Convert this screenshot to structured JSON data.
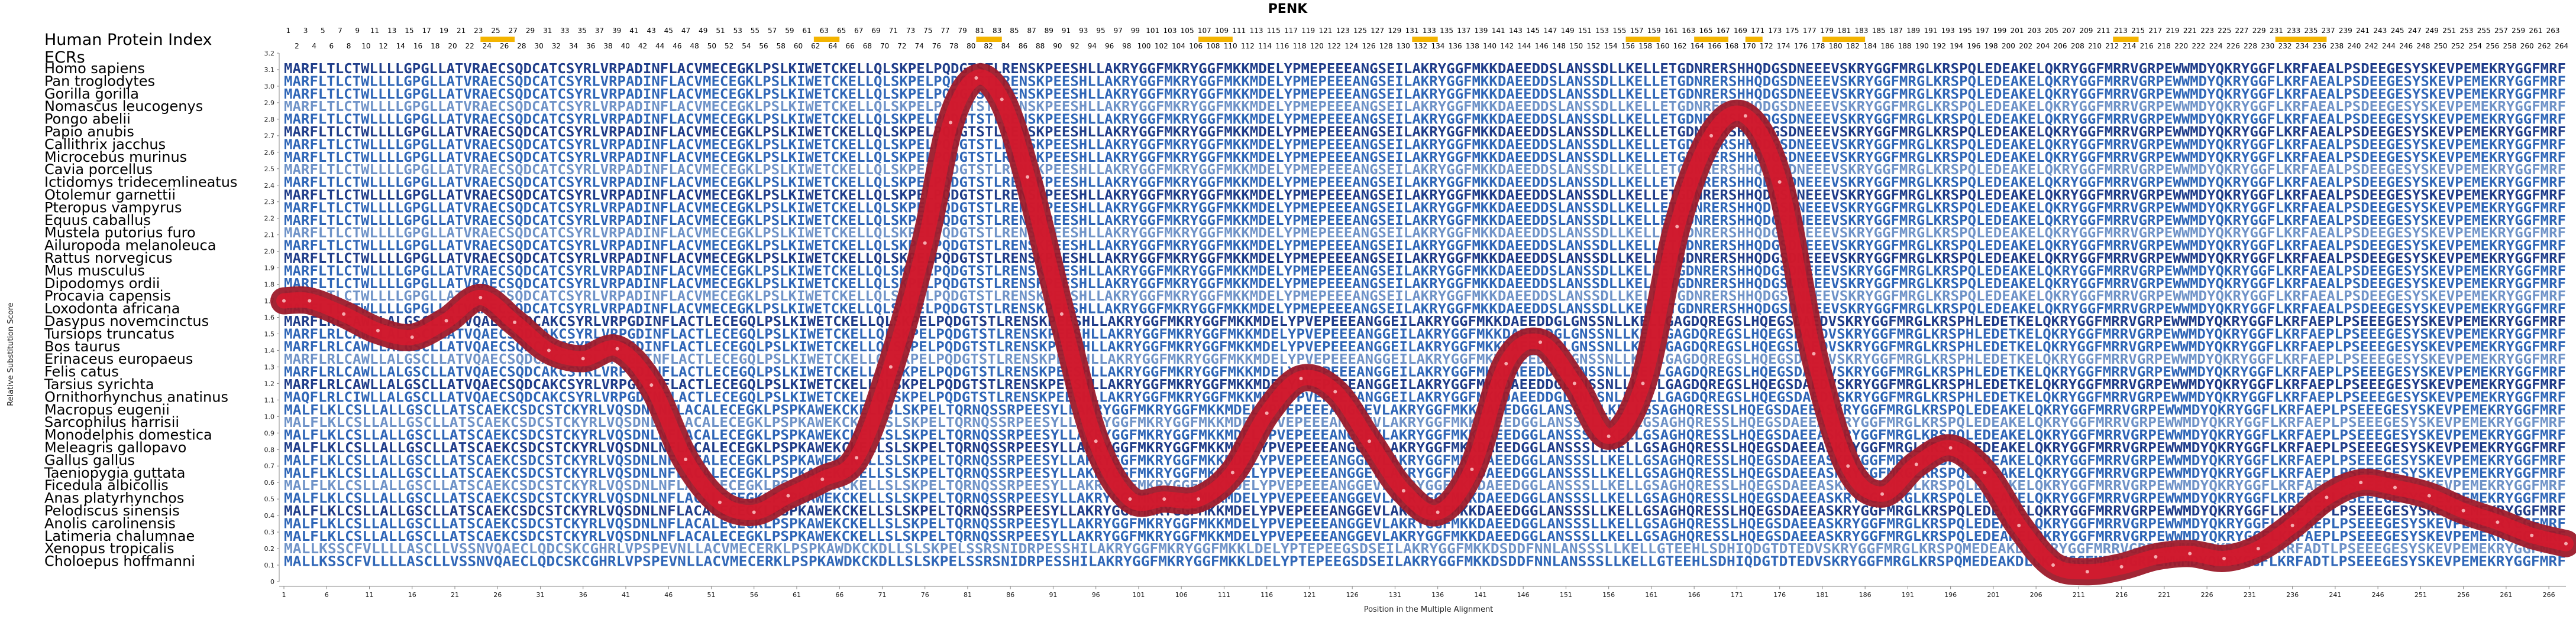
{
  "title": "PENK",
  "header_label": "Human Protein Index",
  "ecr_label": "ECRs",
  "chart_data": {
    "type": "line",
    "title": "PENK",
    "xlabel": "Position in the Multiple Alignment",
    "ylabel": "Relative Substitution Score",
    "xlim": [
      1,
      268
    ],
    "ylim": [
      0,
      3.2
    ],
    "y_ticks": [
      "0",
      "0.1",
      "0.2",
      "0.3",
      "0.4",
      "0.5",
      "0.6",
      "0.7",
      "0.8",
      "0.9",
      "1.0",
      "1.1",
      "1.2",
      "1.3",
      "1.4",
      "1.5",
      "1.6",
      "1.7",
      "1.8",
      "1.9",
      "2.0",
      "2.1",
      "2.2",
      "2.3",
      "2.4",
      "2.5",
      "2.6",
      "2.7",
      "2.8",
      "2.9",
      "3.0",
      "3.1",
      "3.2"
    ],
    "x_ticks": [
      1,
      6,
      11,
      16,
      21,
      26,
      31,
      36,
      41,
      46,
      51,
      56,
      61,
      66,
      71,
      76,
      81,
      86,
      91,
      96,
      101,
      106,
      111,
      116,
      121,
      126,
      131,
      136,
      141,
      146,
      151,
      156,
      161,
      166,
      171,
      176,
      181,
      186,
      191,
      196,
      201,
      206,
      211,
      216,
      221,
      226,
      231,
      236,
      241,
      246,
      251,
      256,
      261,
      266
    ],
    "human_index_count": 264,
    "series": [
      {
        "x": [
          1,
          4,
          8,
          12,
          16,
          20,
          24,
          28,
          32,
          36,
          40,
          44,
          48,
          52,
          56,
          60,
          64,
          68,
          72,
          76,
          79,
          82,
          85,
          88,
          92,
          96,
          100,
          104,
          108,
          112,
          116,
          120,
          124,
          128,
          132,
          136,
          140,
          144,
          148,
          152,
          156,
          160,
          164,
          168,
          172,
          176,
          180,
          184,
          188,
          192,
          196,
          200,
          204,
          208,
          212,
          216,
          220,
          224,
          228,
          232,
          236,
          240,
          244,
          248,
          252,
          256,
          260,
          264,
          268
        ],
        "y": [
          1.7,
          1.7,
          1.62,
          1.52,
          1.48,
          1.58,
          1.72,
          1.57,
          1.4,
          1.35,
          1.41,
          1.19,
          0.74,
          0.48,
          0.42,
          0.52,
          0.62,
          0.75,
          1.3,
          2.05,
          2.78,
          3.05,
          2.92,
          2.45,
          1.62,
          0.85,
          0.5,
          0.5,
          0.5,
          0.66,
          1.02,
          1.23,
          1.15,
          0.85,
          0.55,
          0.42,
          0.68,
          1.32,
          1.45,
          1.2,
          0.88,
          1.2,
          2.15,
          2.7,
          2.82,
          2.42,
          1.38,
          0.7,
          0.53,
          0.71,
          0.81,
          0.66,
          0.34,
          0.1,
          0.06,
          0.09,
          0.15,
          0.17,
          0.14,
          0.2,
          0.34,
          0.51,
          0.6,
          0.57,
          0.52,
          0.43,
          0.36,
          0.28,
          0.23
        ]
      }
    ],
    "ecr_segments": [
      [
        24,
        28
      ],
      [
        63,
        66
      ],
      [
        82,
        85
      ],
      [
        108,
        112
      ],
      [
        133,
        136
      ],
      [
        158,
        162
      ],
      [
        166,
        170
      ],
      [
        172,
        174
      ],
      [
        181,
        186
      ],
      [
        215,
        218
      ],
      [
        234,
        240
      ]
    ]
  },
  "species": [
    "Homo sapiens",
    "Pan troglodytes",
    "Gorilla gorilla",
    "Nomascus leucogenys",
    "Pongo abelii",
    "Papio anubis",
    "Callithrix jacchus",
    "Microcebus murinus",
    "Cavia porcellus",
    "Ictidomys tridecemlineatus",
    "Otolemur garnettii",
    "Pteropus vampyrus",
    "Equus caballus",
    "Mustela putorius furo",
    "Ailuropoda melanoleuca",
    "Rattus norvegicus",
    "Mus musculus",
    "Dipodomys ordii",
    "Procavia capensis",
    "Loxodonta africana",
    "Dasypus novemcinctus",
    "Tursiops truncatus",
    "Bos taurus",
    "Erinaceus europaeus",
    "Felis catus",
    "Tarsius syrichta",
    "Ornithorhynchus anatinus",
    "Macropus eugenii",
    "Sarcophilus harrisii",
    "Monodelphis domestica",
    "Meleagris gallopavo",
    "Gallus gallus",
    "Taeniopygia guttata",
    "Ficedula albicollis",
    "Anas platyrhynchos",
    "Pelodiscus sinensis",
    "Anolis carolinensis",
    "Latimeria chalumnae",
    "Xenopus tropicalis",
    "Choloepus hoffmanni"
  ],
  "sequences": [
    "MARFLTLCTWLLLLGPGLLATVRAECSQDCATCSYRLVRPADINFLACVMECEGKLPSLKIWETCKELLQLSKPELPQDGTSTLRENSKPEESHLLAKRYGGFMKRYGGFMKKMDELYPMEPEEEANGSEILAKRYGGFMKKDAEEDDSLANSSDLLKELLETGDNRERSHHQDGSDNEEEVSKRYGGFMRGLKRSPQLEDEAKELQKRYGGFMRRVGRPEWWMDYQKRYGGFLKRFAEALPSDEEGESYSKEVPEMEKRYGGFMRF",
    "MARFLTLCTWLLLLGPGLLATVRAECSQDCATCSYRLVRPADINFLACVMECEGKLPSLKIWETCKELLQLSKPELPQDGTSTLRENSKPEESHLLAKRYGGFMKRYGGFMKKMDELYPMEPEEEANGSEILAKRYGGFMKKDAEEDDSLANSSDLLKELLETGDNRERSHHQDGSDNEEEVSKRYGGFMRGLKRSPQLEDEAKELQKRYGGFMRRVGRPEWWMDYQKRYGGFLKRFAEALPSDEEGESYSKEVPEMEKRYGGFMRF",
    "MARFLTLCTWLLLLGPGLLATVRAECSQDCATCSYRLVRPADINFLACVMECEGKLPSLKIWETCKELLQLSKPELPQDGTSTLRENSKPEESHLLAKRYGGFMKRYGGFMKKMDELYPMEPEEEANGSEILAKRYGGFMKKDAEEDDSLANSSDLLKELLETGDNRERSHHQDGSDNEEEVSKRYGGFMRGLKRSPQLEDEAKELQKRYGGFMRRVGRPEWWMDYQKRYGGFLKRFAEALPSDEEGESYSKEVPEMEKRYGGFMRF",
    "MARFLTLCTWLLLLGPGLLATVRAECSQDCATCSYRLVRPADINFLACVMECEGKLPSLKIWETCKELLQLSKPELPQDGTSTLRENSKPEESHLLAKRYGGFMKRYGGFMKKMDELYPMEPEEEANGSEILAKRYGGFMKKDAEEDDSLANSSDLLKELLETGDNRERSHHQDGSDNEEEVSKRYGGFMRGLKRSPQLEDEAKELQKRYGGFMRRVGRPEWWMDYQKRYGGFLKRFAEALPSDEEGESYSKEVPEMEKRYGGFMRF",
    "MARFLTLCTWLLLLGPGLLATVRAECSQDCATCSYRLVRPADINFLACVMECEGKLPSLKIWETCKELLQLSKPELPQDGTSTLRENSKPEESHLLAKRYGGFMKRYGGFMKKMDELYPMEPEEEANGSEILAKRYGGFMKKDAEEDDSLANSSDLLKELLETGDNRERSHHQDGSDNEEEVSKRYGGFMRGLKRSPQLEDEAKELQKRYGGFMRRVGRPEWWMDYQKRYGGFLKRFAEALPSDEEGESYSKEVPEMEKRYGGFMRF",
    "MARFLTLCTWLLLLGPGLLATVRAECSQDCATCSYRLVRPADINFLACVMECEGKLPSLKIWETCKELLQLSKPELPQDGTSTLRENSKPEESHLLAKRYGGFMKRYGGFMKKMDELYPMEPEEEANGSEILAKRYGGFMKKDAEEDDSLANSSDLLKELLETGDNRERSHHQDGSDNEEEVSKRYGGFMRGLKRSPQLEDEAKELQKRYGGFMRRVGRPEWWMDYQKRYGGFLKRFAEALPSDEEGESYSKEVPEMEKRYGGFMRF",
    "MARFLTLCTWLLLLGPGLLATVRAECSQDCATCSYRLVRPADINFLACVMECEGKLPSLKIWETCKELLQLSKPELPQDGTSTLRENSKPEESHLLAKRYGGFMKRYGGFMKKMDELYPMEPEEEANGSEILAKRYGGFMKKDAEEDDSLANSSDLLKELLETGDNRERSHHQDGSDNEEEVSKRYGGFMRGLKRSPQLEDEAKELQKRYGGFMRRVGRPEWWMDYQKRYGGFLKRFAEALPSDEEGESYSKEVPEMEKRYGGFMRF",
    "MARFLTLCTWLLLLGPGLLATVRAECSQDCATCSYRLVRPADINFLACVMECEGKLPSLKIWETCKELLQLSKPELPQDGTSTLRENSKPEESHLLAKRYGGFMKRYGGFMKKMDELYPMEPEEEANGSEILAKRYGGFMKKDAEEDDSLANSSDLLKELLETGDNRERSHHQDGSDNEEEVSKRYGGFMRGLKRSPQLEDEAKELQKRYGGFMRRVGRPEWWMDYQKRYGGFLKRFAEALPSDEEGESYSKEVPEMEKRYGGFMRF",
    "MARFLTLCTWLLLLGPGLLATVRAECSQDCATCSYRLVRPADINFLACVMECEGKLPSLKIWETCKELLQLSKPELPQDGTSTLRENSKPEESHLLAKRYGGFMKRYGGFMKKMDELYPMEPEEEANGSEILAKRYGGFMKKDAEEDDSLANSSDLLKELLETGDNRERSHHQDGSDNEEEVSKRYGGFMRGLKRSPQLEDEAKELQKRYGGFMRRVGRPEWWMDYQKRYGGFLKRFAEALPSDEEGESYSKEVPEMEKRYGGFMRF",
    "MARFLTLCTWLLLLGPGLLATVRAECSQDCATCSYRLVRPADINFLACVMECEGKLPSLKIWETCKELLQLSKPELPQDGTSTLRENSKPEESHLLAKRYGGFMKRYGGFMKKMDELYPMEPEEEANGSEILAKRYGGFMKKDAEEDDSLANSSDLLKELLETGDNRERSHHQDGSDNEEEVSKRYGGFMRGLKRSPQLEDEAKELQKRYGGFMRRVGRPEWWMDYQKRYGGFLKRFAEALPSDEEGESYSKEVPEMEKRYGGFMRF",
    "MARFLTLCTWLLLLGPGLLATVRAECSQDCATCSYRLVRPADINFLACVMECEGKLPSLKIWETCKELLQLSKPELPQDGTSTLRENSKPEESHLLAKRYGGFMKRYGGFMKKMDELYPMEPEEEANGSEILAKRYGGFMKKDAEEDDSLANSSDLLKELLETGDNRERSHHQDGSDNEEEVSKRYGGFMRGLKRSPQLEDEAKELQKRYGGFMRRVGRPEWWMDYQKRYGGFLKRFAEALPSDEEGESYSKEVPEMEKRYGGFMRF",
    "MARFLTLCTWLLLLGPGLLATVRAECSQDCATCSYRLVRPADINFLACVMECEGKLPSLKIWETCKELLQLSKPELPQDGTSTLRENSKPEESHLLAKRYGGFMKRYGGFMKKMDELYPMEPEEEANGSEILAKRYGGFMKKDAEEDDSLANSSDLLKELLETGDNRERSHHQDGSDNEEEVSKRYGGFMRGLKRSPQLEDEAKELQKRYGGFMRRVGRPEWWMDYQKRYGGFLKRFAEALPSDEEGESYSKEVPEMEKRYGGFMRF",
    "MARFLTLCTWLLLLGPGLLATVRAECSQDCATCSYRLVRPADINFLACVMECEGKLPSLKIWETCKELLQLSKPELPQDGTSTLRENSKPEESHLLAKRYGGFMKRYGGFMKKMDELYPMEPEEEANGSEILAKRYGGFMKKDAEEDDSLANSSDLLKELLETGDNRERSHHQDGSDNEEEVSKRYGGFMRGLKRSPQLEDEAKELQKRYGGFMRRVGRPEWWMDYQKRYGGFLKRFAEALPSDEEGESYSKEVPEMEKRYGGFMRF",
    "MARFLTLCTWLLLLGPGLLATVRAECSQDCATCSYRLVRPADINFLACVMECEGKLPSLKIWETCKELLQLSKPELPQDGTSTLRENSKPEESHLLAKRYGGFMKRYGGFMKKMDELYPMEPEEEANGSEILAKRYGGFMKKDAEEDDSLANSSDLLKELLETGDNRERSHHQDGSDNEEEVSKRYGGFMRGLKRSPQLEDEAKELQKRYGGFMRRVGRPEWWMDYQKRYGGFLKRFAEALPSDEEGESYSKEVPEMEKRYGGFMRF",
    "MARFLTLCTWLLLLGPGLLATVRAECSQDCATCSYRLVRPADINFLACVMECEGKLPSLKIWETCKELLQLSKPELPQDGTSTLRENSKPEESHLLAKRYGGFMKRYGGFMKKMDELYPMEPEEEANGSEILAKRYGGFMKKDAEEDDSLANSSDLLKELLETGDNRERSHHQDGSDNEEEVSKRYGGFMRGLKRSPQLEDEAKELQKRYGGFMRRVGRPEWWMDYQKRYGGFLKRFAEALPSDEEGESYSKEVPEMEKRYGGFMRF",
    "MARFLTLCTWLLLLGPGLLATVRAECSQDCATCSYRLVRPADINFLACVMECEGKLPSLKIWETCKELLQLSKPELPQDGTSTLRENSKPEESHLLAKRYGGFMKRYGGFMKKMDELYPMEPEEEANGSEILAKRYGGFMKKDAEEDDSLANSSDLLKELLETGDNRERSHHQDGSDNEEEVSKRYGGFMRGLKRSPQLEDEAKELQKRYGGFMRRVGRPEWWMDYQKRYGGFLKRFAEALPSDEEGESYSKEVPEMEKRYGGFMRF",
    "MARFLTLCTWLLLLGPGLLATVRAECSQDCATCSYRLVRPADINFLACVMECEGKLPSLKIWETCKELLQLSKPELPQDGTSTLRENSKPEESHLLAKRYGGFMKRYGGFMKKMDELYPMEPEEEANGSEILAKRYGGFMKKDAEEDDSLANSSDLLKELLETGDNRERSHHQDGSDNEEEVSKRYGGFMRGLKRSPQLEDEAKELQKRYGGFMRRVGRPEWWMDYQKRYGGFLKRFAEALPSDEEGESYSKEVPEMEKRYGGFMRF",
    "MARFLTLCTWLLLLGPGLLATVRAECSQDCATCSYRLVRPADINFLACVMECEGKLPSLKIWETCKELLQLSKPELPQDGTSTLRENSKPEESHLLAKRYGGFMKRYGGFMKKMDELYPMEPEEEANGSEILAKRYGGFMKKDAEEDDSLANSSDLLKELLETGDNRERSHHQDGSDNEEEVSKRYGGFMRGLKRSPQLEDEAKELQKRYGGFMRRVGRPEWWMDYQKRYGGFLKRFAEALPSDEEGESYSKEVPEMEKRYGGFMRF",
    "MARFLTLCTWLLLLGPGLLATVRAECSQDCATCSYRLVRPADINFLACVMECEGKLPSLKIWETCKELLQLSKPELPQDGTSTLRENSKPEESHLLAKRYGGFMKRYGGFMKKMDELYPMEPEEEANGSEILAKRYGGFMKKDAEEDDSLANSSDLLKELLETGDNRERSHHQDGSDNEEEVSKRYGGFMRGLKRSPQLEDEAKELQKRYGGFMRRVGRPEWWMDYQKRYGGFLKRFAEALPSDEEGESYSKEVPEMEKRYGGFMRF",
    "MARFLTLCTWLLLLGPGLLATVRAECSQDCATCSYRLVRPADINFLACVMECEGKLPSLKIWETCKELLQLSKPELPQDGTSTLRENSKPEESHLLAKRYGGFMKRYGGFMKKMDELYPMEPEEEANGSEILAKRYGGFMKKDAEEDDSLANSSDLLKELLETGDNRERSHHQDGSDNEEEVSKRYGGFMRGLKRSPQLEDEAKELQKRYGGFMRRVGRPEWWMDYQKRYGGFLKRFAEALPSDEEGESYSKEVPEMEKRYGGFMRF",
    "MARFLRLCAWLLALGSCLLATVQAECSQDCAKCSYRLVRPGDINFLACTLECEGQLPSLKIWETCKELLQLSKPELPQDGTSTLRENSKPEESHLLAKRYGGFMKRYGGFMKKMDELYPVEPEEEANGGEILAKRYGGFMKKDAEEDDGLGNSSNLLKELLGAGDQREGSLHQEGSDAEDVSKRYGGFMRGLKRSPHLEDETKELQKRYGGFMRRVGRPEWWMDYQKRYGGFLKRFAEPLPSEEEGESYSKEVPEMEKRYGGFMRF",
    "MARFLRLCAWLLALGSCLLATVQAECSQDCAKCSYRLVRPGDINFLACTLECEGQLPSLKIWETCKELLQLSKPELPQDGTSTLRENSKPEESHLLAKRYGGFMKRYGGFMKKMDELYPVEPEEEANGGEILAKRYGGFMKKDAEEDDGLGNSSNLLKELLGAGDQREGSLHQEGSDAEDVSKRYGGFMRGLKRSPHLEDETKELQKRYGGFMRRVGRPEWWMDYQKRYGGFLKRFAEPLPSEEEGESYSKEVPEMEKRYGGFMRF",
    "MARFLRLCAWLLALGSCLLATVQAECSQDCAKCSYRLVRPGDINFLACTLECEGQLPSLKIWETCKELLQLSKPELPQDGTSTLRENSKPEESHLLAKRYGGFMKRYGGFMKKMDELYPVEPEEEANGGEILAKRYGGFMKKDAEEDDGLGNSSNLLKELLGAGDQREGSLHQEGSDAEDVSKRYGGFMRGLKRSPHLEDETKELQKRYGGFMRRVGRPEWWMDYQKRYGGFLKRFAEPLPSEEEGESYSKEVPEMEKRYGGFMRF",
    "MARFLRLCAWLLALGSCLLATVQAECSQDCAKCSYRLVRPGDINFLACTLECEGQLPSLKIWETCKELLQLSKPELPQDGTSTLRENSKPEESHLLAKRYGGFMKRYGGFMKKMDELYPVEPEEEANGGEILAKRYGGFMKKDAEEDDGLGNSSNLLKELLGAGDQREGSLHQEGSDAEDVSKRYGGFMRGLKRSPHLEDETKELQKRYGGFMRRVGRPEWWMDYQKRYGGFLKRFAEPLPSEEEGESYSKEVPEMEKRYGGFMRF",
    "MARFLRLCAWLLALGSCLLATVQAECSQDCAKCSYRLVRPGDINFLACTLECEGQLPSLKIWETCKELLQLSKPELPQDGTSTLRENSKPEESHLLAKRYGGFMKRYGGFMKKMDELYPVEPEEEANGGEILAKRYGGFMKKDAEEDDGLGNSSNLLKELLGAGDQREGSLHQEGSDAEDVSKRYGGFMRGLKRSPHLEDETKELQKRYGGFMRRVGRPEWWMDYQKRYGGFLKRFAEPLPSEEEGESYSKEVPEMEKRYGGFMRF",
    "MARFLRLCAWLLALGSCLLATVQAECSQDCAKCSYRLVRPGDINFLACTLECEGQLPSLKIWETCKELLQLSKPELPQDGTSTLRENSKPEESHLLAKRYGGFMKRYGGFMKKMDELYPVEPEEEANGGEILAKRYGGFMKKDAEEDDGLGNSSNLLKELLGAGDQREGSLHQEGSDAEDVSKRYGGFMRGLKRSPHLEDETKELQKRYGGFMRRVGRPEWWMDYQKRYGGFLKRFAEPLPSEEEGESYSKEVPEMEKRYGGFMRF",
    "MAQFLRLCIWLLALGSCLLATVQAECSQDCAKCSYRLVRPGDINFLACTLECEGQLPSLKIWETCKELLQLSKPELPQDGTSTLRENSKPEESHLLAKRYGGFMKRYGGFMKKMDELYPVEPEEEANGGEILAKRYGGFMKKDAEEDDGLGNSSNLLKELLGAGDQREGSLHQEGSDAEDVSKRYGGFMRGLKRSPHLEDETKELQKRYGGFMRRVGRPEWWMDYQKRYGGFLKRFAEPLPSEEEGESYSKEVPEMEKRYGGFMRF",
    "MALFLKLCSLLALLGSCLLATSCAEKCSDCSTCKYRLVQSDNLNFLACALECEGKLPSPKAWEKCKELLSLSKPELTQRNQSSRPEESYLLAKRYGGFMKRYGGFMKKMDELYPVEPEEEANGGEVLAKRYGGFMKKDAEEDGGLANSSSLLKELLGSAGHQRESSLHQEGSDAEEASKRYGGFMRGLKRSPQLEDEAKELQKRYGGFMRRVGRPEWWMDYQKRYGGFLKRFAEPLPSEEEGESYSKEVPEMEKRYGGFMRF",
    "MALFLKLCSLLALLGSCLLATSCAEKCSDCSTCKYRLVQSDNLNFLACALECEGKLPSPKAWEKCKELLSLSKPELTQRNQSSRPEESYLLAKRYGGFMKRYGGFMKKMDELYPVEPEEEANGGEVLAKRYGGFMKKDAEEDGGLANSSSLLKELLGSAGHQRESSLHQEGSDAEEASKRYGGFMRGLKRSPQLEDEAKELQKRYGGFMRRVGRPEWWMDYQKRYGGFLKRFAEPLPSEEEGESYSKEVPEMEKRYGGFMRF",
    "MALFLKLCSLLALLGSCLLATSCAEKCSDCSTCKYRLVQSDNLNFLACALECEGKLPSPKAWEKCKELLSLSKPELTQRNQSSRPEESYLLAKRYGGFMKRYGGFMKKMDELYPVEPEEEANGGEVLAKRYGGFMKKDAEEDGGLANSSSLLKELLGSAGHQRESSLHQEGSDAEEASKRYGGFMRGLKRSPQLEDEAKELQKRYGGFMRRVGRPEWWMDYQKRYGGFLKRFAEPLPSEEEGESYSKEVPEMEKRYGGFMRF",
    "MALFLKLCSLLALLGSCLLATSCAEKCSDCSTCKYRLVQSDNLNFLACALECEGKLPSPKAWEKCKELLSLSKPELTQRNQSSRPEESYLLAKRYGGFMKRYGGFMKKMDELYPVEPEEEANGGEVLAKRYGGFMKKDAEEDGGLANSSSLLKELLGSAGHQRESSLHQEGSDAEEASKRYGGFMRGLKRSPQLEDEAKELQKRYGGFMRRVGRPEWWMDYQKRYGGFLKRFAEPLPSEEEGESYSKEVPEMEKRYGGFMRF",
    "MALFLKLCSLLALLGSCLLATSCAEKCSDCSTCKYRLVQSDNLNFLACALECEGKLPSPKAWEKCKELLSLSKPELTQRNQSSRPEESYLLAKRYGGFMKRYGGFMKKMDELYPVEPEEEANGGEVLAKRYGGFMKKDAEEDGGLANSSSLLKELLGSAGHQRESSLHQEGSDAEEASKRYGGFMRGLKRSPQLEDEAKELQKRYGGFMRRVGRPEWWMDYQKRYGGFLKRFAEPLPSEEEGESYSKEVPEMEKRYGGFMRF",
    "MALFLKLCSLLALLGSCLLATSCAEKCSDCSTCKYRLVQSDNLNFLACALECEGKLPSPKAWEKCKELLSLSKPELTQRNQSSRPEESYLLAKRYGGFMKRYGGFMKKMDELYPVEPEEEANGGEVLAKRYGGFMKKDAEEDGGLANSSSLLKELLGSAGHQRESSLHQEGSDAEEASKRYGGFMRGLKRSPQLEDEAKELQKRYGGFMRRVGRPEWWMDYQKRYGGFLKRFAEPLPSEEEGESYSKEVPEMEKRYGGFMRF",
    "MALFLKLCSLLALLGSCLLATSCAEKCSDCSTCKYRLVQSDNLNFLACALECEGKLPSPKAWEKCKELLSLSKPELTQRNQSSRPEESYLLAKRYGGFMKRYGGFMKKMDELYPVEPEEEANGGEVLAKRYGGFMKKDAEEDGGLANSSSLLKELLGSAGHQRESSLHQEGSDAEEASKRYGGFMRGLKRSPQLEDEAKELQKRYGGFMRRVGRPEWWMDYQKRYGGFLKRFAEPLPSEEEGESYSKEVPEMEKRYGGFMRF",
    "MALFLKLCSLLALLGSCLLATSCAEKCSDCSTCKYRLVQSDNLNFLACALECEGKLPSPKAWEKCKELLSLSKPELTQRNQSSRPEESYLLAKRYGGFMKRYGGFMKKMDELYPVEPEEEANGGEVLAKRYGGFMKKDAEEDGGLANSSSLLKELLGSAGHQRESSLHQEGSDAEEASKRYGGFMRGLKRSPQLEDEAKELQKRYGGFMRRVGRPEWWMDYQKRYGGFLKRFAEPLPSEEEGESYSKEVPEMEKRYGGFMRF",
    "MALFLKLCSLLALLGSCLLATSCAEKCSDCSTCKYRLVQSDNLNFLACALECEGKLPSPKAWEKCKELLSLSKPELTQRNQSSRPEESYLLAKRYGGFMKRYGGFMKKMDELYPVEPEEEANGGEVLAKRYGGFMKKDAEEDGGLANSSSLLKELLGSAGHQRESSLHQEGSDAEEASKRYGGFMRGLKRSPQLEDEAKELQKRYGGFMRRVGRPEWWMDYQKRYGGFLKRFAEPLPSEEEGESYSKEVPEMEKRYGGFMRF",
    "MALFLKLCSLLALLGSCLLATSCAEKCSDCSTCKYRLVQSDNLNFLACALECEGKLPSPKAWEKCKELLSLSKPELTQRNQSSRPEESYLLAKRYGGFMKRYGGFMKKMDELYPVEPEEEANGGEVLAKRYGGFMKKDAEEDGGLANSSSLLKELLGSAGHQRESSLHQEGSDAEEASKRYGGFMRGLKRSPQLEDEAKELQKRYGGFMRRVGRPEWWMDYQKRYGGFLKRFAEPLPSEEEGESYSKEVPEMEKRYGGFMRF",
    "MALFLKLCSLLALLGSCLLATSCAEKCSDCSTCKYRLVQSDNLNFLACALECEGKLPSPKAWEKCKELLSLSKPELTQRNQSSRPEESYLLAKRYGGFMKRYGGFMKKMDELYPVEPEEEANGGEVLAKRYGGFMKKDAEEDGGLANSSSLLKELLGSAGHQRESSLHQEGSDAEEASKRYGGFMRGLKRSPQLEDEAKELQKRYGGFMRRVGRPEWWMDYQKRYGGFLKRFAEPLPSEEEGESYSKEVPEMEKRYGGFMRF",
    "MALLKSSCFVLLLLASCLLVSSNVQAECLQDCSKCGHRLVPSPEVNLLACVMECERKLPSPKAWDKCKDLLSLSKPELSSRSNIDRPESSHILAKRYGGFMKRYGGFMKKLDELYPTEPEEGSDSEILAKRYGGFMKKDSDDFNNLANSSSLLKELLGTEEHLSDHIQDGTDTEDVSKRYGGFMRGLKRSPQMEDEAKDLQKRYGGFMRRVGRPEWWMDYQKRYGGFLKRFADTLPSEEEGESYSKEVPEMEKRYGGFMRF",
    "MALLKSSCFVLLLLASCLLVSSNVQAECLQDCSKCGHRLVPSPEVNLLACVMECERKLPSPKAWDKCKDLLSLSKPELSSRSNIDRPESSHILAKRYGGFMKRYGGFMKKLDELYPTEPEEGSDSEILAKRYGGFMKKDSDDFNNLANSSSLLKELLGTEEHLSDHIQDGTDTEDVSKRYGGFMRGLKRSPQMEDEAKDLQKRYGGFMRRVGRPEWWMDYQKRYGGFLKRFADTLPSEEEGESYSKEVPEMEKRYGGFMRF",
    "MARFLRLCAWLLALGSCLLATVQAECSQDCAKCSYRLVRPGDINFLACTLECEGQLPSLKIWETCKELLQLSKPELPQDGTSTLRENSKPEESHLLAKRYGGFMKRYGGFMKKMDELYPVEPEEEANGGEILAKRYGGFMKKDAEEDDGLGNSSNLLKELLGAGDQREGSLHQEGSDAEDVSKRYGGFMRGLKRSPHLEDETKELQKRYGGFMRRVGRPEWWMDYQKRYGGFLKRFAEPLPSEEEGESYSKEVPEMEKRYGGFMRF"
  ],
  "colors": {
    "seq_dark": "#1f3d8a",
    "seq_mid": "#2f66b7",
    "seq_light": "#6f93c8",
    "ecr_bar": "#f4b400",
    "curve": "#9c1a2a",
    "curve_highlight": "#e0182d"
  }
}
